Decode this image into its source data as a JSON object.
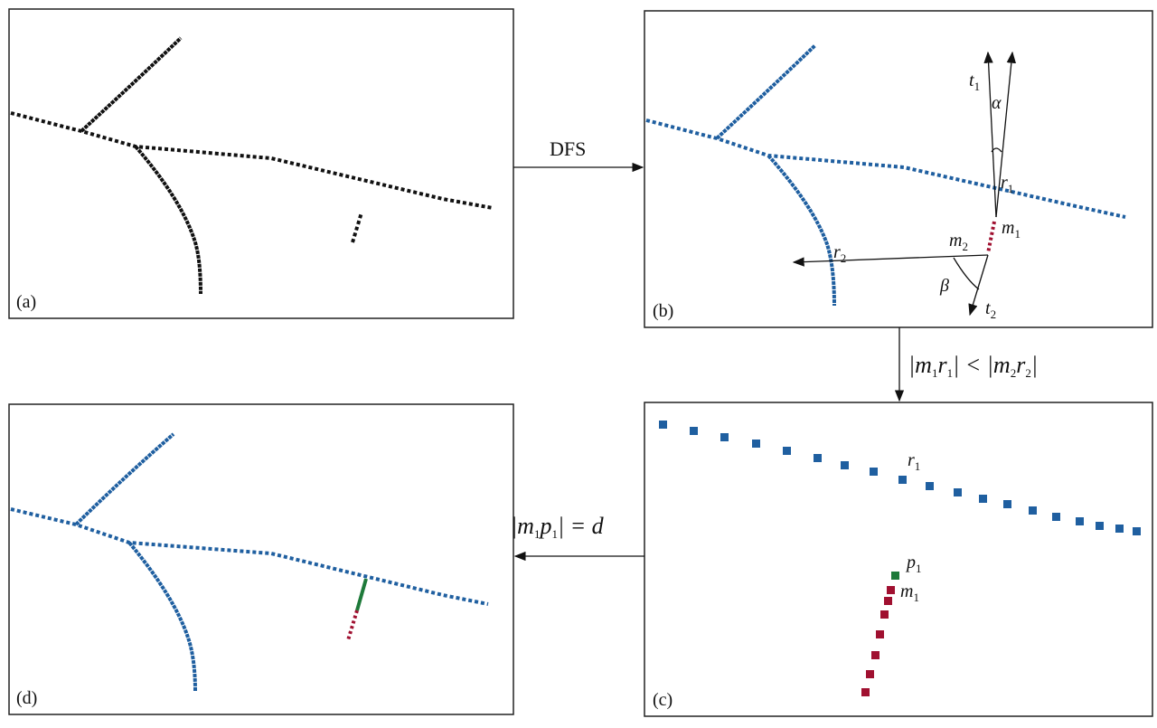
{
  "panels": [
    {
      "label": "(a)"
    },
    {
      "label": "(b)"
    },
    {
      "label": "(c)"
    },
    {
      "label": "(d)"
    }
  ],
  "arrows": [
    {
      "label": [
        {
          "text": "DFS"
        }
      ]
    },
    {
      "label": [
        {
          "text": "|m"
        },
        {
          "sub": "1"
        },
        {
          "text": "r"
        },
        {
          "sub": "1"
        },
        {
          "text": "| < |m"
        },
        {
          "sub": "2"
        },
        {
          "text": "r"
        },
        {
          "sub": "2"
        },
        {
          "text": "|"
        }
      ]
    },
    {
      "label": [
        {
          "text": "|m"
        },
        {
          "sub": "1"
        },
        {
          "text": "p"
        },
        {
          "sub": "1"
        },
        {
          "text": "| = d"
        }
      ]
    }
  ],
  "panel_b_labels": {
    "t1": {
      "text": "t",
      "sub": "1"
    },
    "alpha": {
      "text": "α"
    },
    "r1": {
      "text": "r",
      "sub": "1"
    },
    "m1": {
      "text": "m",
      "sub": "1"
    },
    "m2": {
      "text": "m",
      "sub": "2"
    },
    "r2": {
      "text": "r",
      "sub": "2"
    },
    "beta": {
      "text": "β"
    },
    "t2": {
      "text": "t",
      "sub": "2"
    }
  },
  "panel_c_labels": {
    "r1": {
      "text": "r",
      "sub": "1"
    },
    "p1": {
      "text": "p",
      "sub": "1"
    },
    "m1": {
      "text": "m",
      "sub": "1"
    }
  }
}
